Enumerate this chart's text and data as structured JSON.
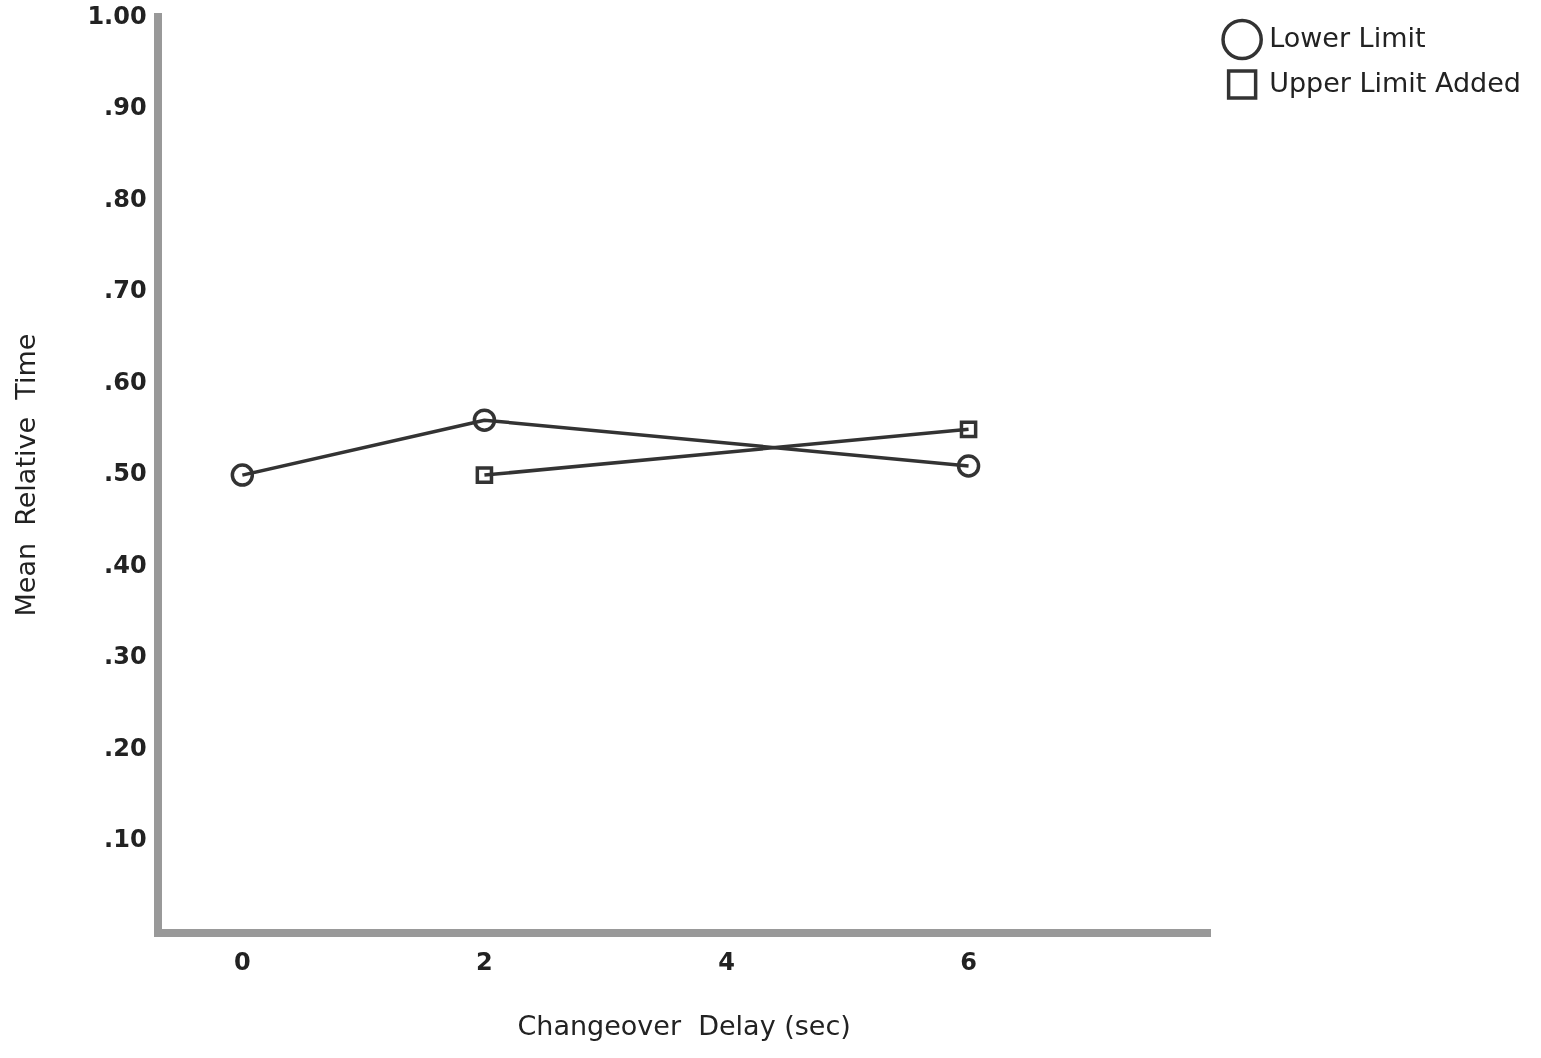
{
  "chart_data": {
    "type": "line",
    "xlabel": "Changeover  Delay (sec)",
    "ylabel": "Mean  Relative  Time",
    "x": [
      0,
      2,
      6
    ],
    "series": [
      {
        "name": "Lower Limit",
        "color": "#333333",
        "marker": "circle",
        "values": [
          0.5,
          0.56,
          0.51
        ]
      },
      {
        "name": "Upper Limit Added",
        "color": "#333333",
        "marker": "square",
        "x": [
          2,
          6
        ],
        "values": [
          0.5,
          0.55
        ]
      }
    ],
    "xlim": [
      -0.7,
      8
    ],
    "xticks": [
      0,
      2,
      4,
      6
    ],
    "ylim": [
      0,
      1
    ],
    "yticks": [
      {
        "value": 0.1,
        "label": ".10"
      },
      {
        "value": 0.2,
        "label": ".20"
      },
      {
        "value": 0.3,
        "label": ".30"
      },
      {
        "value": 0.4,
        "label": ".40"
      },
      {
        "value": 0.5,
        "label": ".50"
      },
      {
        "value": 0.6,
        "label": ".60"
      },
      {
        "value": 0.7,
        "label": ".70"
      },
      {
        "value": 0.8,
        "label": ".80"
      },
      {
        "value": 0.9,
        "label": ".90"
      },
      {
        "value": 1.0,
        "label": "1.00"
      }
    ],
    "grid": false,
    "legend": "top right",
    "line_style": "solid"
  }
}
